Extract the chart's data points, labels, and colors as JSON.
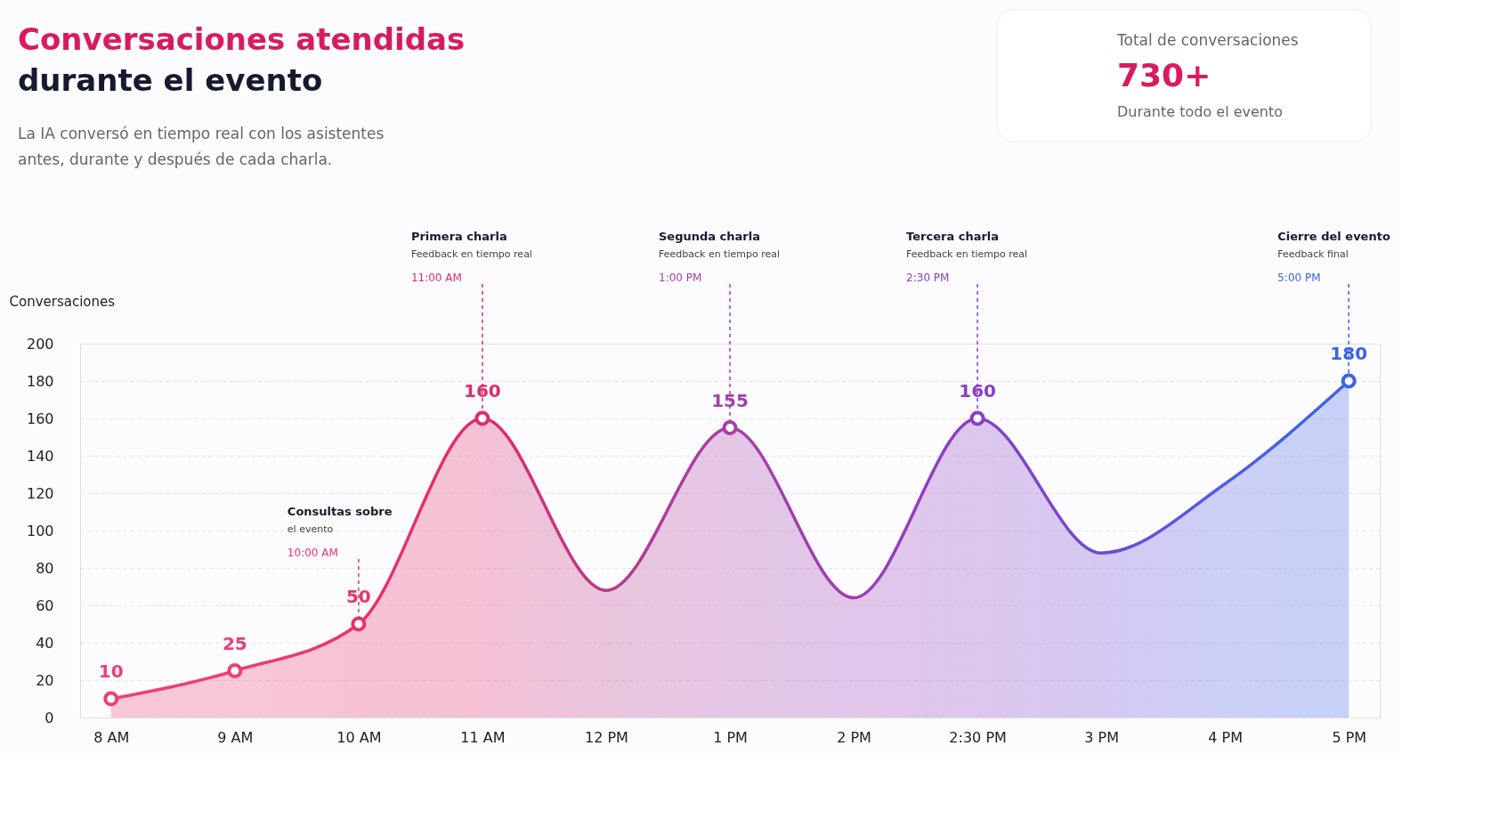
{
  "chart_data": {
    "type": "area",
    "title": "Conversaciones atendidas durante el evento",
    "subtitle": "La IA conversó en tiempo real con los asistentes antes, durante y después de cada charla.",
    "ylabel": "Conversaciones",
    "categories": [
      "8 AM",
      "9 AM",
      "10 AM",
      "11 AM",
      "12 PM",
      "1 PM",
      "2 PM",
      "2:30 PM",
      "3 PM",
      "4 PM",
      "5 PM"
    ],
    "series": [
      {
        "values": [
          10,
          25,
          50,
          160,
          68,
          155,
          64,
          160,
          88,
          125,
          180
        ],
        "colors": [
          "#ec3f78",
          "#ec3f78",
          "#e8336d",
          "#e02a6f",
          "#b83a8a",
          "#a63fa8",
          "#9c3db5",
          "#8a3fc4",
          "#6f48d6",
          "#4f5ee6",
          "#3a63e8"
        ],
        "value_labels": [
          "10",
          "25",
          "50",
          "160",
          null,
          "155",
          null,
          "160",
          null,
          null,
          "180"
        ]
      }
    ],
    "ylim": [
      0,
      200
    ],
    "yticks": [
      0,
      20,
      40,
      60,
      80,
      100,
      120,
      140,
      160,
      180,
      200
    ],
    "grid": "y",
    "marker": "circle",
    "line_style": "solid",
    "annotations": [
      "Total de conversaciones",
      "730+",
      "Durante todo el evento",
      {
        "text": "Consultas sobre\nel evento\n10:00 AM",
        "x": "10 AM",
        "y": 50
      },
      {
        "text": "Primera charla\nFeedback en tiempo real\n11:00 AM",
        "x": "11 AM",
        "y": 160
      },
      {
        "text": "Segunda charla\nFeedback en tiempo real\n1:00 PM",
        "x": "1 PM",
        "y": 155
      },
      {
        "text": "Tercera charla\nFeedback en tiempo real\n2:30 PM",
        "x": "2:30 PM",
        "y": 160
      },
      {
        "text": "Cierre del evento\nFeedback final\n5:00 PM",
        "x": "5 PM",
        "y": 180
      }
    ]
  }
}
